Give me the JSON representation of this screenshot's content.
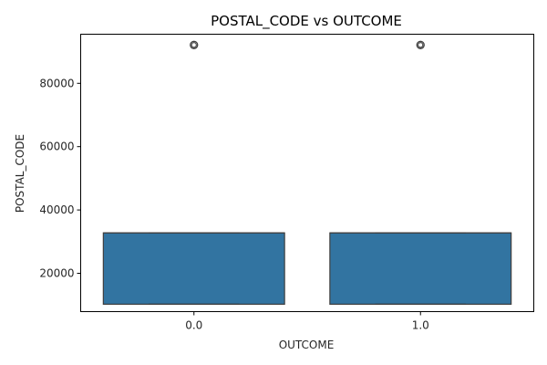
{
  "chart_data": {
    "type": "box",
    "title": "POSTAL_CODE vs OUTCOME",
    "xlabel": "OUTCOME",
    "ylabel": "POSTAL_CODE",
    "categories": [
      "0.0",
      "1.0"
    ],
    "ylim": [
      7900,
      95500
    ],
    "yticks": [
      20000,
      40000,
      60000,
      80000
    ],
    "ytick_labels": [
      "20000",
      "40000",
      "60000",
      "80000"
    ],
    "grid": false,
    "boxes": [
      {
        "category": "0.0",
        "min": 10238,
        "q1": 10238,
        "median": 32765,
        "q3": 32765,
        "max": 32765,
        "outliers": [
          92101
        ]
      },
      {
        "category": "1.0",
        "min": 10238,
        "q1": 10238,
        "median": 32765,
        "q3": 32765,
        "max": 32765,
        "outliers": [
          92101
        ]
      }
    ],
    "colors": {
      "box_fill": "#3274a1",
      "box_edge": "#3f3f3f"
    }
  }
}
